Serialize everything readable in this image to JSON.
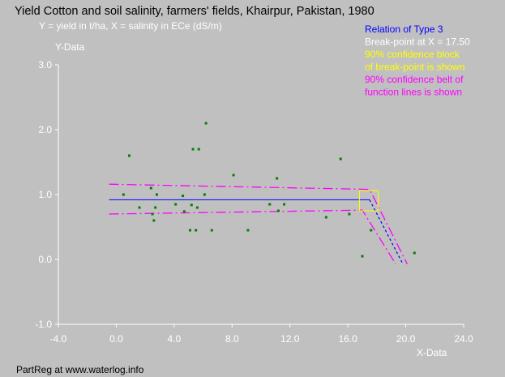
{
  "chart_data": {
    "type": "scatter",
    "title": "Yield Cotton and soil salinity, farmers' fields, Khairpur, Pakistan, 1980",
    "subtitle": "Y = yield in t/ha, X = salinity in ECe (dS/m)",
    "ylabel": "Y-Data",
    "xlabel": "X-Data",
    "xlim": [
      -4,
      24
    ],
    "ylim": [
      -1,
      3
    ],
    "x_ticks": [
      -4,
      0,
      4,
      8,
      12,
      16,
      20,
      24
    ],
    "x_tick_labels": [
      "-4.0",
      "0.0",
      "4.0",
      "8.0",
      "12.0",
      "16.0",
      "20.0",
      "24.0"
    ],
    "y_ticks": [
      -1,
      0,
      1,
      2,
      3
    ],
    "y_tick_labels": [
      "-1.0",
      "0.0",
      "1.0",
      "2.0",
      "3.0"
    ],
    "grid": false,
    "legend": [
      {
        "text": "Relation of Type 3",
        "color": "#0000ff"
      },
      {
        "text": "Break-point at X = 17.50",
        "color": "#ffffff"
      },
      {
        "text": "90% confidence block",
        "color": "#ffff00"
      },
      {
        "text": "of break-point is shown",
        "color": "#ffff00"
      },
      {
        "text": "90% confidence belt of",
        "color": "#ff00ff"
      },
      {
        "text": "function lines is shown",
        "color": "#ff00ff"
      }
    ],
    "legend_position": "top-right",
    "footer": "PartReg at www.waterlog.info",
    "points": [
      {
        "x": 0.5,
        "y": 1.0
      },
      {
        "x": 0.9,
        "y": 1.6
      },
      {
        "x": 1.6,
        "y": 0.8
      },
      {
        "x": 2.4,
        "y": 1.1
      },
      {
        "x": 2.5,
        "y": 0.7
      },
      {
        "x": 2.6,
        "y": 0.6
      },
      {
        "x": 2.7,
        "y": 0.8
      },
      {
        "x": 2.8,
        "y": 1.0
      },
      {
        "x": 4.1,
        "y": 0.85
      },
      {
        "x": 4.6,
        "y": 0.98
      },
      {
        "x": 4.7,
        "y": 0.74
      },
      {
        "x": 5.1,
        "y": 0.45
      },
      {
        "x": 5.2,
        "y": 0.84
      },
      {
        "x": 5.3,
        "y": 1.7
      },
      {
        "x": 5.5,
        "y": 0.45
      },
      {
        "x": 5.6,
        "y": 0.8
      },
      {
        "x": 5.7,
        "y": 1.7
      },
      {
        "x": 6.1,
        "y": 1.0
      },
      {
        "x": 6.2,
        "y": 2.1
      },
      {
        "x": 6.6,
        "y": 0.45
      },
      {
        "x": 8.1,
        "y": 1.3
      },
      {
        "x": 9.1,
        "y": 0.45
      },
      {
        "x": 10.6,
        "y": 0.85
      },
      {
        "x": 11.1,
        "y": 1.25
      },
      {
        "x": 11.2,
        "y": 0.75
      },
      {
        "x": 11.6,
        "y": 0.85
      },
      {
        "x": 14.5,
        "y": 0.65
      },
      {
        "x": 15.5,
        "y": 1.55
      },
      {
        "x": 16.1,
        "y": 0.7
      },
      {
        "x": 17.0,
        "y": 0.05
      },
      {
        "x": 17.6,
        "y": 0.45
      },
      {
        "x": 20.6,
        "y": 0.1
      }
    ],
    "fit_line": [
      {
        "x": -0.5,
        "y": 0.92
      },
      {
        "x": 17.5,
        "y": 0.92
      },
      {
        "x": 19.8,
        "y": -0.07
      }
    ],
    "fit_line_extension": [
      {
        "x": 17.5,
        "y": 0.92
      },
      {
        "x": 19.8,
        "y": -0.07
      }
    ],
    "confidence_belt_upper": [
      {
        "x": -0.5,
        "y": 1.16
      },
      {
        "x": 17.5,
        "y": 1.08
      },
      {
        "x": 20.1,
        "y": -0.07
      }
    ],
    "confidence_belt_lower": [
      {
        "x": -0.5,
        "y": 0.7
      },
      {
        "x": 17.0,
        "y": 0.76
      },
      {
        "x": 19.3,
        "y": -0.07
      }
    ],
    "breakpoint_block": {
      "x_min": 16.8,
      "x_max": 18.1,
      "y_min": 0.75,
      "y_max": 1.06
    },
    "colors": {
      "points": "#008000",
      "fit": "#0000ff",
      "belt": "#ff00ff",
      "block": "#ffff00",
      "axes": "#ffffff",
      "text": "#ffffff"
    }
  }
}
